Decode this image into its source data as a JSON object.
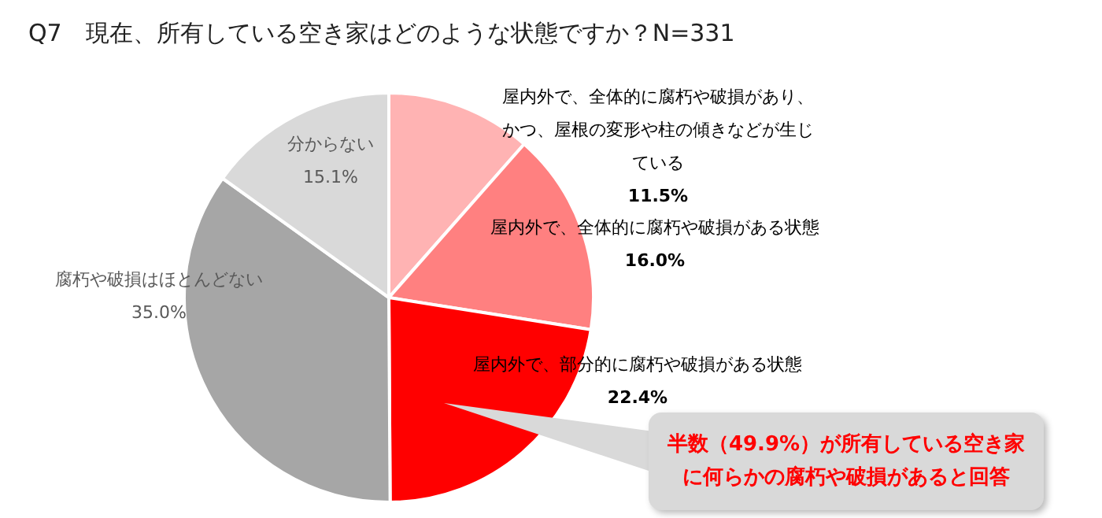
{
  "chart_data": {
    "type": "pie",
    "title": "Q7　現在、所有している空き家はどのような状態ですか？N=331",
    "categories": [
      "屋内外で、全体的に腐朽や破損があり、かつ、屋根の変形や柱の傾きなどが生じている",
      "屋内外で、全体的に腐朽や破損がある状態",
      "屋内外で、部分的に腐朽や破損がある状態",
      "腐朽や破損はほとんどない",
      "分からない"
    ],
    "values": [
      11.5,
      16.0,
      22.4,
      35.0,
      15.1
    ],
    "colors": [
      "#ffb3b3",
      "#ff8080",
      "#ff0000",
      "#a6a6a6",
      "#d9d9d9"
    ],
    "value_labels": [
      "11.5%",
      "16.0%",
      "22.4%",
      "35.0%",
      "15.1%"
    ],
    "legend": false,
    "annotations": [
      "半数（49.9%）が所有している空き家に何らかの腐朽や破損があると回答"
    ]
  }
}
